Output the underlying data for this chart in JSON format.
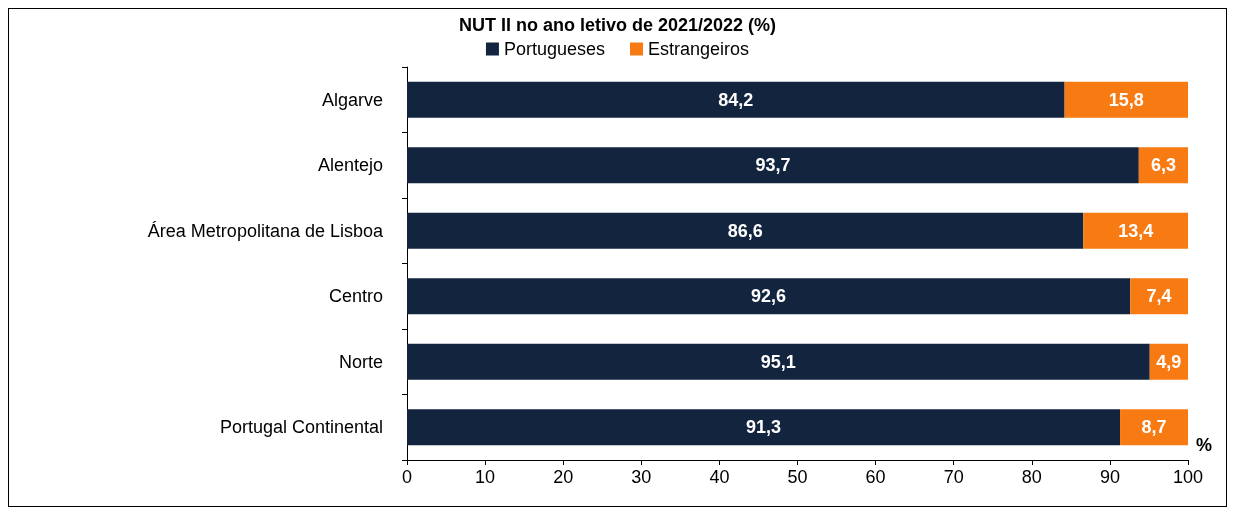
{
  "chart_data": {
    "type": "bar",
    "title": "NUT II no ano letivo de 2021/2022 (%)",
    "xlabel": "%",
    "orientation": "horizontal",
    "stacked": true,
    "categories": [
      "Algarve",
      "Alentejo",
      "Área Metropolitana de Lisboa",
      "Centro",
      "Norte",
      "Portugal Continental"
    ],
    "series": [
      {
        "name": "Portugueses",
        "color": "#13243f",
        "values": [
          84.2,
          93.7,
          86.6,
          92.6,
          95.1,
          91.3
        ],
        "value_labels": [
          "84,2",
          "93,7",
          "86,6",
          "92,6",
          "95,1",
          "91,3"
        ]
      },
      {
        "name": "Estrangeiros",
        "color": "#f77a12",
        "values": [
          15.8,
          6.3,
          13.4,
          7.4,
          4.9,
          8.7
        ],
        "value_labels": [
          "15,8",
          "6,3",
          "13,4",
          "7,4",
          "4,9",
          "8,7"
        ]
      }
    ],
    "xlim": [
      0,
      100
    ],
    "xticks": [
      0,
      10,
      20,
      30,
      40,
      50,
      60,
      70,
      80,
      90,
      100
    ],
    "grid": false,
    "legend": "top"
  }
}
